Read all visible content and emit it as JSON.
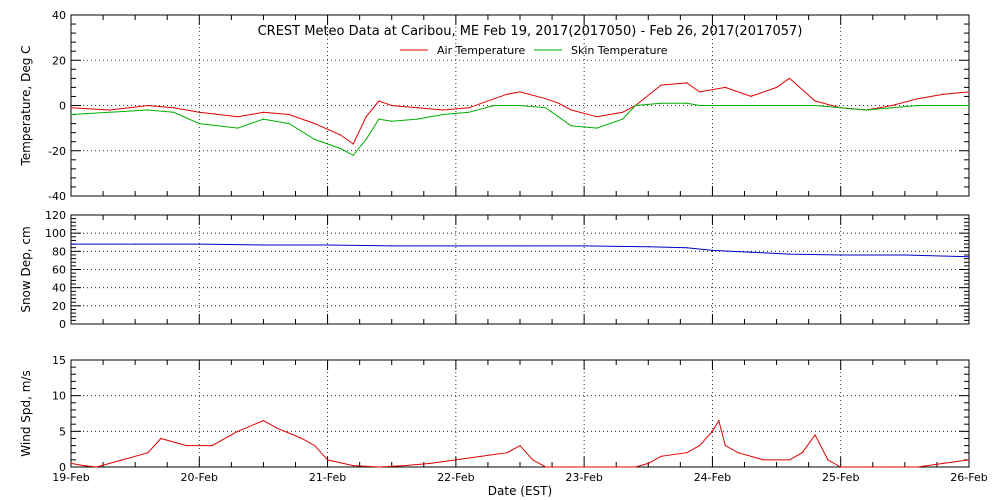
{
  "chart_data": [
    {
      "type": "line",
      "title": "CREST Meteo Data at Caribou, ME   Feb 19, 2017(2017050) - Feb 26, 2017(2017057)",
      "ylabel": "Temperature, Deg C",
      "ylim": [
        -40,
        40
      ],
      "yticks": [
        "40",
        "20",
        "0",
        "-20",
        "-40"
      ],
      "xlim": [
        "2017-02-19",
        "2017-02-26"
      ],
      "grid": true,
      "legend_placement": "top-center",
      "series": [
        {
          "name": "Air Temperature",
          "color": "#e00000",
          "x": [
            19.0,
            19.3,
            19.6,
            19.8,
            20.0,
            20.3,
            20.5,
            20.7,
            20.9,
            21.1,
            21.2,
            21.3,
            21.4,
            21.5,
            21.7,
            21.9,
            22.1,
            22.3,
            22.4,
            22.5,
            22.7,
            22.8,
            22.9,
            23.1,
            23.3,
            23.4,
            23.6,
            23.8,
            23.9,
            24.1,
            24.3,
            24.5,
            24.6,
            24.8,
            25.0,
            25.2,
            25.4,
            25.6,
            25.8,
            26.0
          ],
          "y": [
            -1,
            -2,
            0,
            -1,
            -3,
            -5,
            -3,
            -4,
            -8,
            -13,
            -17,
            -5,
            2,
            0,
            -1,
            -2,
            -1,
            3,
            5,
            6,
            3,
            1,
            -2,
            -5,
            -3,
            0,
            9,
            10,
            6,
            8,
            4,
            8,
            12,
            2,
            -1,
            -2,
            0,
            3,
            5,
            6
          ]
        },
        {
          "name": "Skin Temperature",
          "color": "#00b000",
          "x": [
            19.0,
            19.3,
            19.6,
            19.8,
            20.0,
            20.3,
            20.5,
            20.7,
            20.9,
            21.1,
            21.2,
            21.3,
            21.4,
            21.5,
            21.7,
            21.9,
            22.1,
            22.3,
            22.4,
            22.5,
            22.7,
            22.8,
            22.9,
            23.1,
            23.3,
            23.4,
            23.6,
            23.8,
            23.9,
            24.1,
            24.3,
            24.5,
            24.6,
            24.8,
            25.0,
            25.2,
            25.4,
            25.6,
            25.8,
            26.0
          ],
          "y": [
            -4,
            -3,
            -2,
            -3,
            -8,
            -10,
            -6,
            -8,
            -15,
            -19,
            -22,
            -15,
            -6,
            -7,
            -6,
            -4,
            -3,
            0,
            0,
            0,
            -1,
            -5,
            -9,
            -10,
            -6,
            0,
            1,
            1,
            0,
            0,
            0,
            0,
            0,
            0,
            -1,
            -2,
            -1,
            0,
            0,
            0
          ]
        }
      ]
    },
    {
      "type": "line",
      "ylabel": "Snow Dep, cm",
      "ylim": [
        0,
        120
      ],
      "yticks": [
        "120",
        "100",
        "80",
        "60",
        "40",
        "20",
        "0"
      ],
      "xlim": [
        "2017-02-19",
        "2017-02-26"
      ],
      "grid": true,
      "series": [
        {
          "color": "#0000c0",
          "x": [
            19.0,
            19.5,
            20.0,
            20.5,
            21.0,
            21.5,
            22.0,
            22.5,
            23.0,
            23.5,
            23.8,
            24.0,
            24.3,
            24.6,
            25.0,
            25.5,
            26.0
          ],
          "y": [
            88,
            88,
            88,
            87,
            87,
            86,
            86,
            86,
            86,
            85,
            84,
            81,
            79,
            77,
            76,
            76,
            74
          ]
        }
      ]
    },
    {
      "type": "line",
      "ylabel": "Wind Spd, m/s",
      "xlabel": "Date (EST)",
      "ylim": [
        0,
        15
      ],
      "yticks": [
        "15",
        "10",
        "5",
        "0"
      ],
      "xlim": [
        "2017-02-19",
        "2017-02-26"
      ],
      "categories": [
        "19-Feb",
        "20-Feb",
        "21-Feb",
        "22-Feb",
        "23-Feb",
        "24-Feb",
        "25-Feb",
        "26-Feb"
      ],
      "grid": true,
      "series": [
        {
          "color": "#e00000",
          "x": [
            19.0,
            19.1,
            19.2,
            19.4,
            19.6,
            19.7,
            19.9,
            20.1,
            20.3,
            20.5,
            20.6,
            20.8,
            20.9,
            21.0,
            21.2,
            21.4,
            21.6,
            21.8,
            22.0,
            22.2,
            22.4,
            22.5,
            22.6,
            22.7,
            22.9,
            23.2,
            23.4,
            23.5,
            23.6,
            23.8,
            23.9,
            24.0,
            24.05,
            24.1,
            24.2,
            24.4,
            24.6,
            24.7,
            24.8,
            24.9,
            25.0,
            25.2,
            25.4,
            25.6,
            25.8,
            26.0
          ],
          "y": [
            0.5,
            0.2,
            0,
            1,
            2,
            4,
            3,
            3,
            5,
            6.5,
            5.5,
            4,
            3,
            1,
            0.2,
            0,
            0.2,
            0.5,
            1,
            1.5,
            2,
            3,
            1,
            0,
            0,
            0,
            0,
            0.5,
            1.5,
            2,
            3,
            5,
            6.5,
            3,
            2,
            1,
            1,
            2,
            4.5,
            1,
            0,
            0,
            0,
            0,
            0.5,
            1
          ]
        }
      ]
    }
  ]
}
